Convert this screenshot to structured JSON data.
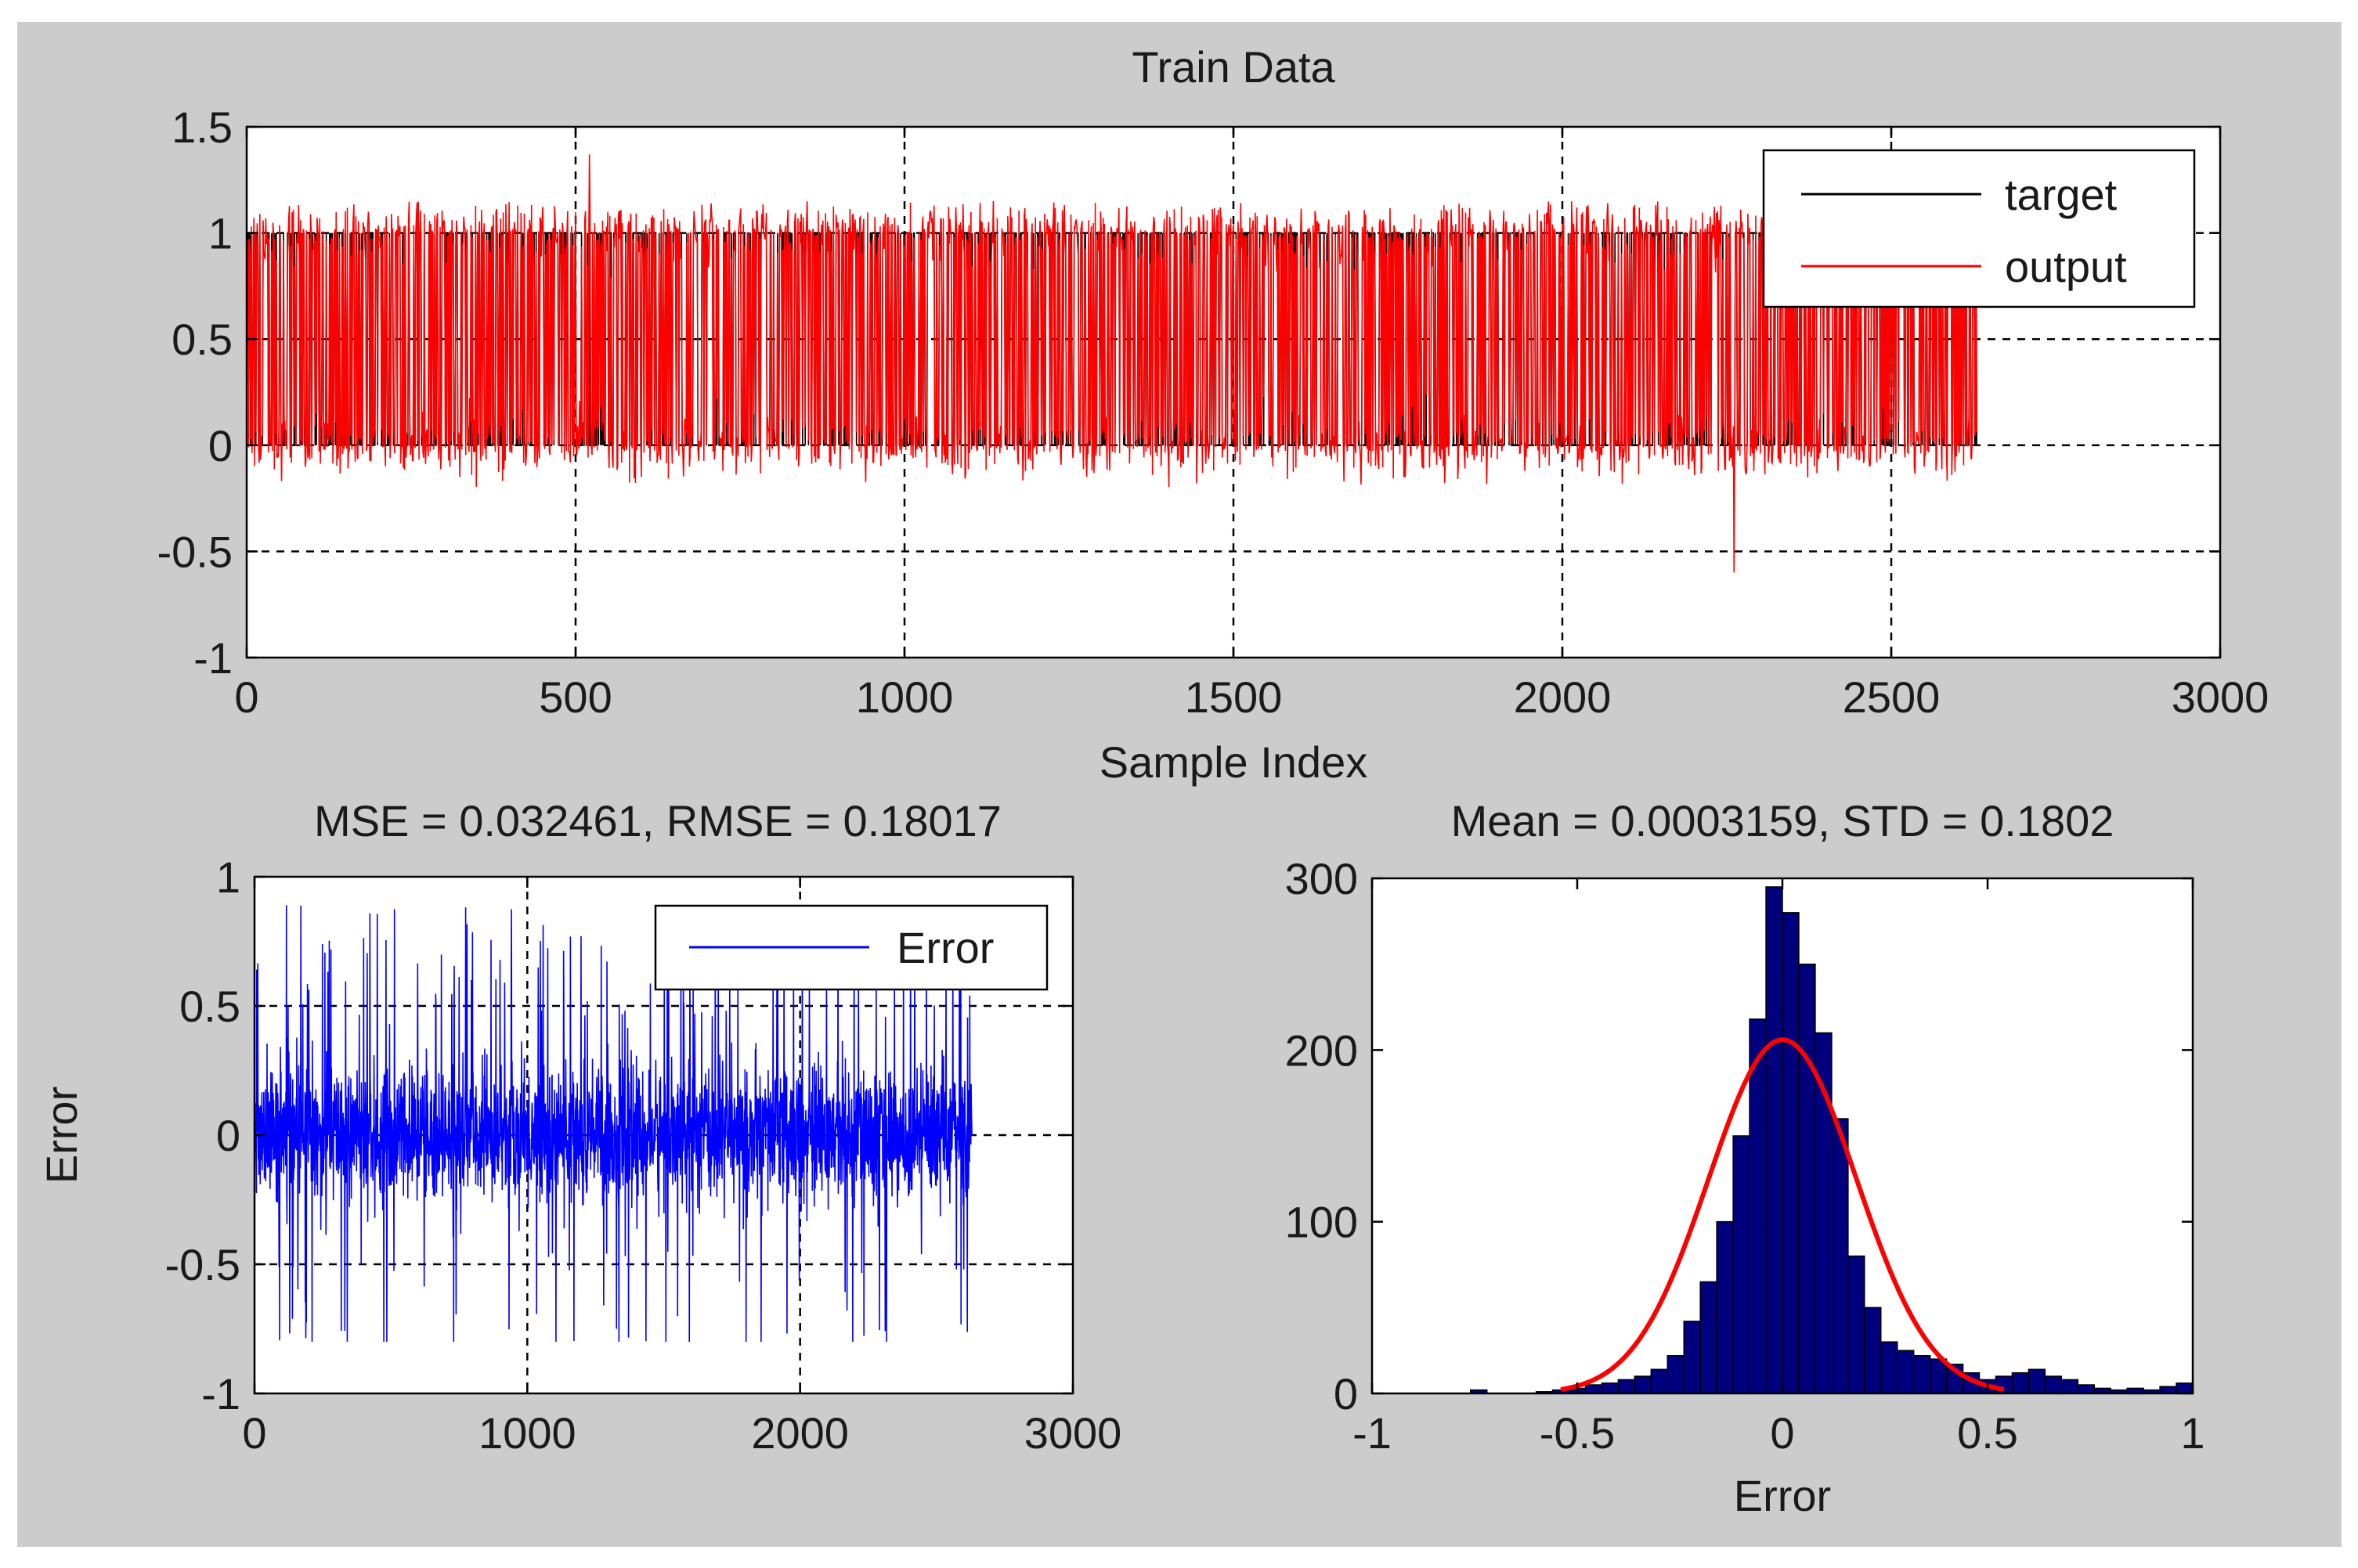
{
  "figure": {
    "background": "#cccccc",
    "axes_background": "#ffffff"
  },
  "chart_data": [
    {
      "id": "train",
      "type": "line",
      "title": "Train Data",
      "xlabel": "Sample Index",
      "ylabel": "",
      "xlim": [
        0,
        3000
      ],
      "ylim": [
        -1,
        1.5
      ],
      "xticks": [
        0,
        500,
        1000,
        1500,
        2000,
        2500,
        3000
      ],
      "yticks": [
        -1,
        -0.5,
        0,
        0.5,
        1,
        1.5
      ],
      "xtick_labels": [
        "0",
        "500",
        "1000",
        "1500",
        "2000",
        "2500",
        "3000"
      ],
      "ytick_labels": [
        "-1",
        "-0.5",
        "0",
        "0.5",
        "1",
        "1.5"
      ],
      "grid": true,
      "legend_position": "top-right",
      "legend": [
        {
          "label": "target",
          "color": "#000000"
        },
        {
          "label": "output",
          "color": "#ff0000"
        }
      ],
      "series": [
        {
          "name": "target",
          "color": "#000000",
          "n": 2630,
          "values": "binary 0/1 per sample"
        },
        {
          "name": "output",
          "color": "#ff0000",
          "n": 2630,
          "range_approx": [
            -0.2,
            1.15
          ],
          "spikes": [
            {
              "x": 520,
              "y": 1.37
            },
            {
              "x": 2260,
              "y": -0.6
            }
          ]
        }
      ]
    },
    {
      "id": "error",
      "type": "line",
      "title": "MSE = 0.032461, RMSE = 0.18017",
      "xlabel": "",
      "ylabel": "Error",
      "xlim": [
        0,
        3000
      ],
      "ylim": [
        -1,
        1
      ],
      "xticks": [
        0,
        1000,
        2000,
        3000
      ],
      "yticks": [
        -1,
        -0.5,
        0,
        0.5,
        1
      ],
      "xtick_labels": [
        "0",
        "1000",
        "2000",
        "3000"
      ],
      "ytick_labels": [
        "-1",
        "-0.5",
        "0",
        "0.5",
        "1"
      ],
      "grid": true,
      "legend_position": "top-right",
      "legend": [
        {
          "label": "Error",
          "color": "#0000ff"
        }
      ],
      "series": [
        {
          "name": "Error",
          "color": "#0000ff",
          "n": 2630,
          "range_approx": [
            -0.8,
            0.95
          ]
        }
      ]
    },
    {
      "id": "hist",
      "type": "bar",
      "title": "Mean = 0.0003159, STD = 0.1802",
      "xlabel": "Error",
      "ylabel": "",
      "xlim": [
        -1,
        1
      ],
      "ylim": [
        0,
        300
      ],
      "xticks": [
        -1,
        -0.5,
        0,
        0.5,
        1
      ],
      "yticks": [
        0,
        100,
        200,
        300
      ],
      "xtick_labels": [
        "-1",
        "-0.5",
        "0",
        "0.5",
        "1"
      ],
      "ytick_labels": [
        "0",
        "100",
        "200",
        "300"
      ],
      "grid": false,
      "bar_color": "#00007f",
      "bin_edges_start": -1.0,
      "bin_width": 0.04,
      "counts": [
        0,
        0,
        0,
        0,
        0,
        0,
        2,
        0,
        0,
        0,
        1,
        2,
        3,
        5,
        6,
        8,
        10,
        14,
        22,
        42,
        65,
        100,
        150,
        218,
        295,
        280,
        250,
        210,
        160,
        80,
        50,
        30,
        25,
        22,
        20,
        17,
        12,
        8,
        10,
        12,
        14,
        10,
        8,
        5,
        3,
        2,
        3,
        2,
        4,
        6
      ],
      "fit": {
        "type": "normal",
        "mean": 0.0003159,
        "std": 0.1802,
        "peak": 206,
        "x_range": [
          -0.54,
          0.54
        ],
        "color": "#ff0000"
      }
    }
  ]
}
